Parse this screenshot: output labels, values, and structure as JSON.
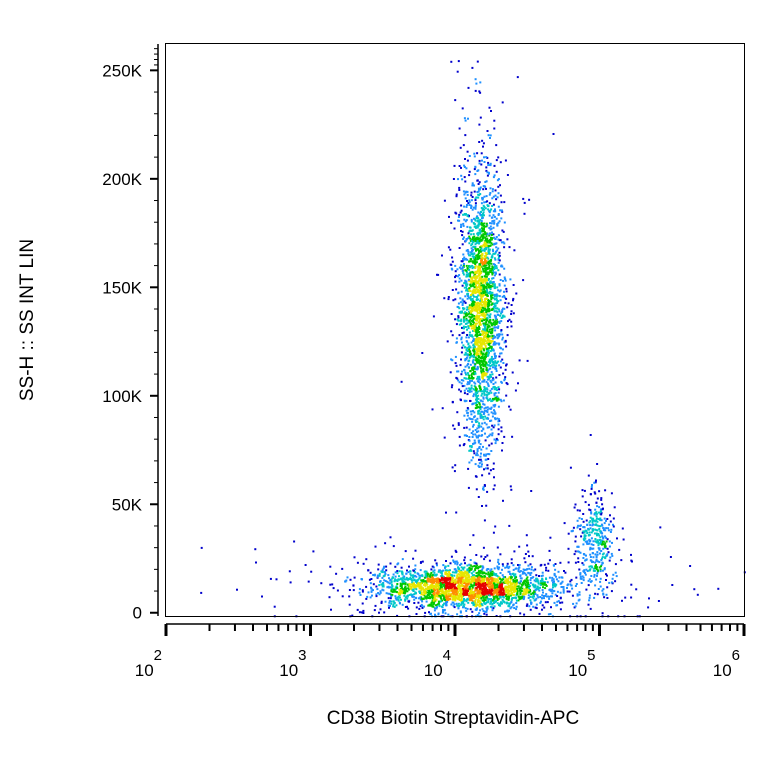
{
  "chart_data": {
    "type": "scatter",
    "subtype": "flow-cytometry density dot plot",
    "xlabel": "CD38 Biotin Streptavidin-APC",
    "ylabel": "SS-H :: SS INT LIN",
    "x_scale": "log",
    "y_scale": "linear",
    "xlim": [
      100,
      1000000
    ],
    "ylim": [
      -1500,
      262144
    ],
    "x_ticks": [
      {
        "base": "10",
        "exp": "2",
        "value": 100
      },
      {
        "base": "10",
        "exp": "3",
        "value": 1000
      },
      {
        "base": "10",
        "exp": "4",
        "value": 10000
      },
      {
        "base": "10",
        "exp": "5",
        "value": 100000
      },
      {
        "base": "10",
        "exp": "6",
        "value": 1000000
      }
    ],
    "y_ticks": [
      {
        "label": "0",
        "value": 0
      },
      {
        "label": "50K",
        "value": 50000
      },
      {
        "label": "100K",
        "value": 100000
      },
      {
        "label": "150K",
        "value": 150000
      },
      {
        "label": "200K",
        "value": 200000
      },
      {
        "label": "250K",
        "value": 250000
      }
    ],
    "grid": false,
    "legend": "none",
    "color_scale": [
      "#0000cc",
      "#1e90ff",
      "#00c8c8",
      "#00c800",
      "#e6e600",
      "#ff8c00",
      "#e60000"
    ],
    "populations": [
      {
        "x_center": 15000,
        "y_center": 140000,
        "x_spread_decades": 0.08,
        "y_spread": 32000,
        "points": 2600
      },
      {
        "x_center": 12000,
        "y_center": 12000,
        "x_spread_decades": 0.32,
        "y_spread": 5000,
        "points": 2600
      },
      {
        "x_center": 90000,
        "y_center": 33000,
        "x_spread_decades": 0.07,
        "y_spread": 11000,
        "points": 380
      }
    ]
  }
}
